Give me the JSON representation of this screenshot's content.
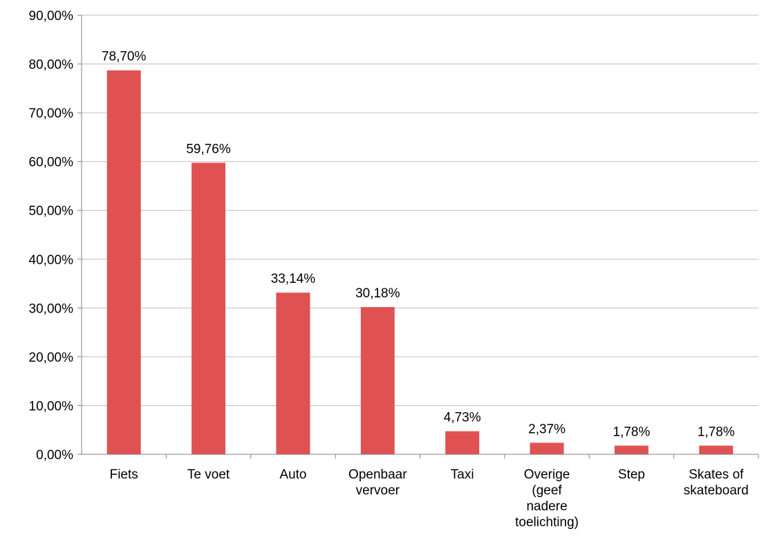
{
  "chart_data": {
    "type": "bar",
    "categories": [
      [
        "Fiets"
      ],
      [
        "Te voet"
      ],
      [
        "Auto"
      ],
      [
        "Openbaar",
        "vervoer"
      ],
      [
        "Taxi"
      ],
      [
        "Overige",
        "(geef",
        "nadere",
        "toelichting)"
      ],
      [
        "Step"
      ],
      [
        "Skates of",
        "skateboard"
      ]
    ],
    "values": [
      78.7,
      59.76,
      33.14,
      30.18,
      4.73,
      2.37,
      1.78,
      1.78
    ],
    "data_labels": [
      "78,70%",
      "59,76%",
      "33,14%",
      "30,18%",
      "4,73%",
      "2,37%",
      "1,78%",
      "1,78%"
    ],
    "y_ticks": [
      "0,00%",
      "10,00%",
      "20,00%",
      "30,00%",
      "40,00%",
      "50,00%",
      "60,00%",
      "70,00%",
      "80,00%",
      "90,00%"
    ],
    "ylim": [
      0,
      90
    ],
    "grid": true,
    "legend": "none",
    "bar_color": "#e05252",
    "grid_color": "#bfbfbf",
    "axis_color": "#808080"
  }
}
